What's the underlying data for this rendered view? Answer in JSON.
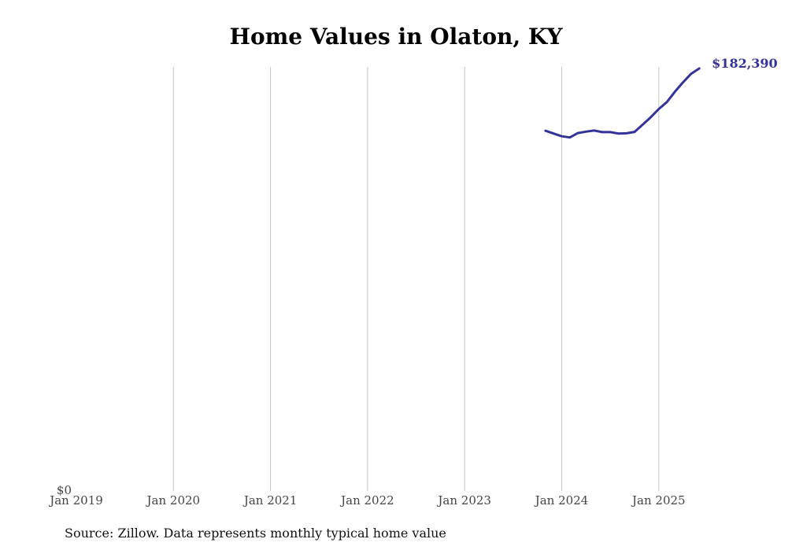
{
  "chart_data": {
    "type": "line",
    "title": "Home Values in Olaton, KY",
    "xlabel": "",
    "ylabel": "",
    "x_tick_labels": [
      "Jan 2019",
      "Jan 2020",
      "Jan 2021",
      "Jan 2022",
      "Jan 2023",
      "Jan 2024",
      "Jan 2025"
    ],
    "y_tick_labels": [
      "$0"
    ],
    "ylim": [
      0,
      182390
    ],
    "grid": "vertical",
    "series": [
      {
        "color": "#33339a",
        "end_label": "$182,390",
        "points": [
          {
            "x": "2023-11",
            "y": 155500
          },
          {
            "x": "2023-12",
            "y": 154300
          },
          {
            "x": "2024-01",
            "y": 153100
          },
          {
            "x": "2024-02",
            "y": 152600
          },
          {
            "x": "2024-03",
            "y": 154500
          },
          {
            "x": "2024-04",
            "y": 155100
          },
          {
            "x": "2024-05",
            "y": 155600
          },
          {
            "x": "2024-06",
            "y": 154900
          },
          {
            "x": "2024-07",
            "y": 154900
          },
          {
            "x": "2024-08",
            "y": 154300
          },
          {
            "x": "2024-09",
            "y": 154400
          },
          {
            "x": "2024-10",
            "y": 155000
          },
          {
            "x": "2024-11",
            "y": 158100
          },
          {
            "x": "2024-12",
            "y": 161300
          },
          {
            "x": "2025-01",
            "y": 164900
          },
          {
            "x": "2025-02",
            "y": 167900
          },
          {
            "x": "2025-03",
            "y": 172400
          },
          {
            "x": "2025-04",
            "y": 176400
          },
          {
            "x": "2025-05",
            "y": 180100
          },
          {
            "x": "2025-06",
            "y": 182390
          }
        ]
      }
    ]
  },
  "source": "Source: Zillow. Data represents monthly typical home value"
}
